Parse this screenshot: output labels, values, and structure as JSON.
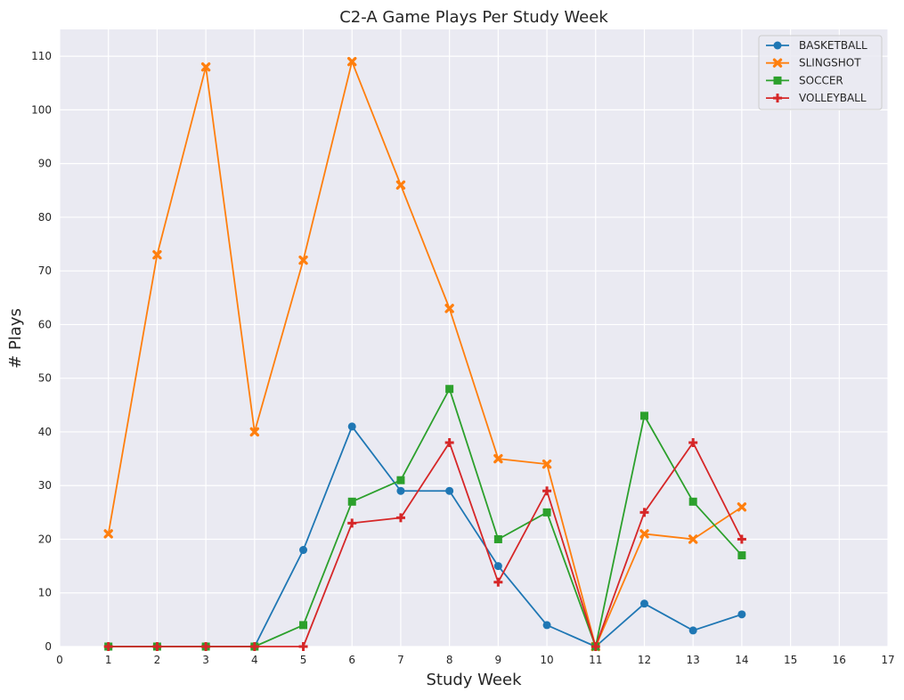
{
  "chart_data": {
    "type": "line",
    "title": "C2-A Game Plays Per Study Week",
    "xlabel": "Study Week",
    "ylabel": "# Plays",
    "xlim": [
      0,
      17
    ],
    "ylim": [
      0,
      115
    ],
    "xticks": [
      0,
      1,
      2,
      3,
      4,
      5,
      6,
      7,
      8,
      9,
      10,
      11,
      12,
      13,
      14,
      15,
      16,
      17
    ],
    "yticks": [
      0,
      10,
      20,
      30,
      40,
      50,
      60,
      70,
      80,
      90,
      100,
      110
    ],
    "grid": true,
    "legend_position": "top-right",
    "x": [
      1,
      2,
      3,
      4,
      5,
      6,
      7,
      8,
      9,
      10,
      11,
      12,
      13,
      14
    ],
    "series": [
      {
        "name": "BASKETBALL",
        "color": "#1f77b4",
        "marker": "circle",
        "values": [
          0,
          0,
          0,
          0,
          18,
          41,
          29,
          29,
          15,
          4,
          0,
          8,
          3,
          6
        ]
      },
      {
        "name": "SLINGSHOT",
        "color": "#ff7f0e",
        "marker": "x",
        "values": [
          21,
          73,
          108,
          40,
          72,
          109,
          86,
          63,
          35,
          34,
          0,
          21,
          20,
          26
        ]
      },
      {
        "name": "SOCCER",
        "color": "#2ca02c",
        "marker": "square",
        "values": [
          0,
          0,
          0,
          0,
          4,
          27,
          31,
          48,
          20,
          25,
          0,
          43,
          27,
          17
        ]
      },
      {
        "name": "VOLLEYBALL",
        "color": "#d62728",
        "marker": "plus",
        "values": [
          0,
          0,
          0,
          0,
          0,
          23,
          24,
          38,
          12,
          29,
          0,
          25,
          38,
          20
        ]
      }
    ]
  }
}
